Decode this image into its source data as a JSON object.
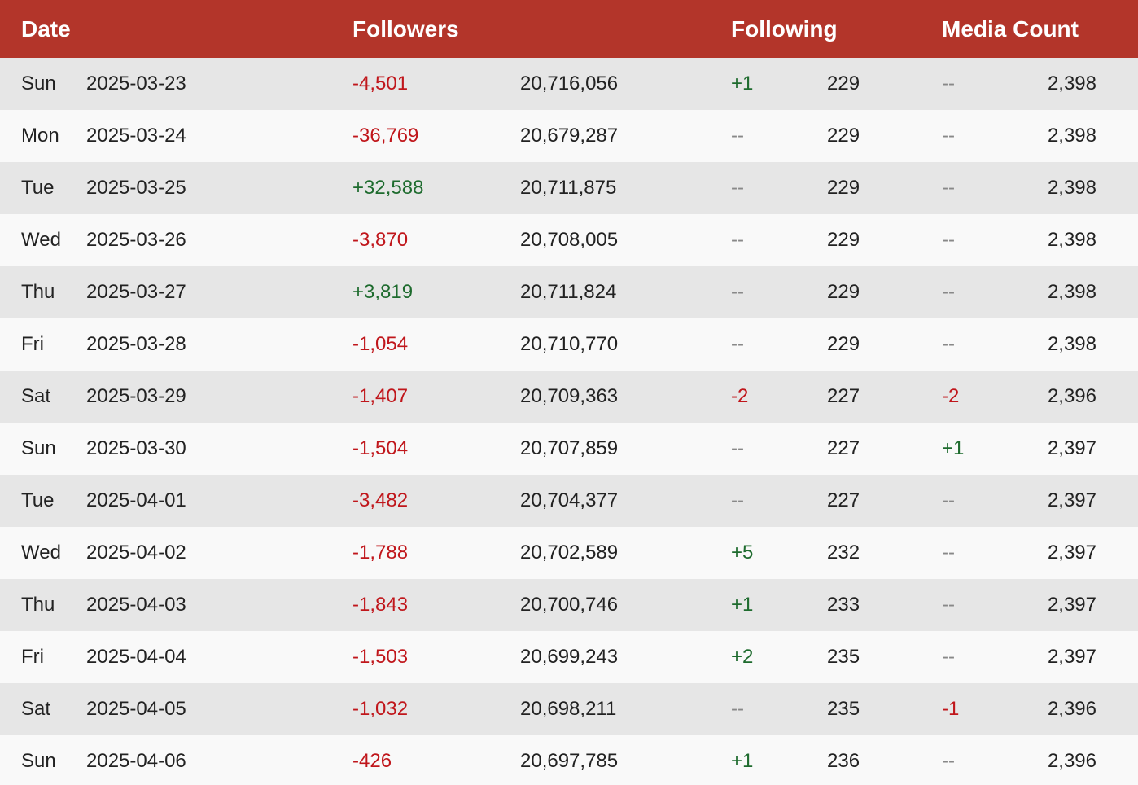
{
  "colors": {
    "header_bg": "#b3352a",
    "header_text": "#ffffff",
    "row_odd": "#e6e6e6",
    "row_even": "#f9f9f9",
    "negative": "#c0161b",
    "positive": "#1e6b2e",
    "neutral": "#888888"
  },
  "header": {
    "date": "Date",
    "followers": "Followers",
    "following": "Following",
    "media_count": "Media Count"
  },
  "rows": [
    {
      "day": "Sun",
      "date": "2025-03-23",
      "followers_change": "-4,501",
      "followers": "20,716,056",
      "following_change": "+1",
      "following": "229",
      "media_change": "--",
      "media": "2,398"
    },
    {
      "day": "Mon",
      "date": "2025-03-24",
      "followers_change": "-36,769",
      "followers": "20,679,287",
      "following_change": "--",
      "following": "229",
      "media_change": "--",
      "media": "2,398"
    },
    {
      "day": "Tue",
      "date": "2025-03-25",
      "followers_change": "+32,588",
      "followers": "20,711,875",
      "following_change": "--",
      "following": "229",
      "media_change": "--",
      "media": "2,398"
    },
    {
      "day": "Wed",
      "date": "2025-03-26",
      "followers_change": "-3,870",
      "followers": "20,708,005",
      "following_change": "--",
      "following": "229",
      "media_change": "--",
      "media": "2,398"
    },
    {
      "day": "Thu",
      "date": "2025-03-27",
      "followers_change": "+3,819",
      "followers": "20,711,824",
      "following_change": "--",
      "following": "229",
      "media_change": "--",
      "media": "2,398"
    },
    {
      "day": "Fri",
      "date": "2025-03-28",
      "followers_change": "-1,054",
      "followers": "20,710,770",
      "following_change": "--",
      "following": "229",
      "media_change": "--",
      "media": "2,398"
    },
    {
      "day": "Sat",
      "date": "2025-03-29",
      "followers_change": "-1,407",
      "followers": "20,709,363",
      "following_change": "-2",
      "following": "227",
      "media_change": "-2",
      "media": "2,396"
    },
    {
      "day": "Sun",
      "date": "2025-03-30",
      "followers_change": "-1,504",
      "followers": "20,707,859",
      "following_change": "--",
      "following": "227",
      "media_change": "+1",
      "media": "2,397"
    },
    {
      "day": "Tue",
      "date": "2025-04-01",
      "followers_change": "-3,482",
      "followers": "20,704,377",
      "following_change": "--",
      "following": "227",
      "media_change": "--",
      "media": "2,397"
    },
    {
      "day": "Wed",
      "date": "2025-04-02",
      "followers_change": "-1,788",
      "followers": "20,702,589",
      "following_change": "+5",
      "following": "232",
      "media_change": "--",
      "media": "2,397"
    },
    {
      "day": "Thu",
      "date": "2025-04-03",
      "followers_change": "-1,843",
      "followers": "20,700,746",
      "following_change": "+1",
      "following": "233",
      "media_change": "--",
      "media": "2,397"
    },
    {
      "day": "Fri",
      "date": "2025-04-04",
      "followers_change": "-1,503",
      "followers": "20,699,243",
      "following_change": "+2",
      "following": "235",
      "media_change": "--",
      "media": "2,397"
    },
    {
      "day": "Sat",
      "date": "2025-04-05",
      "followers_change": "-1,032",
      "followers": "20,698,211",
      "following_change": "--",
      "following": "235",
      "media_change": "-1",
      "media": "2,396"
    },
    {
      "day": "Sun",
      "date": "2025-04-06",
      "followers_change": "-426",
      "followers": "20,697,785",
      "following_change": "+1",
      "following": "236",
      "media_change": "--",
      "media": "2,396"
    }
  ]
}
